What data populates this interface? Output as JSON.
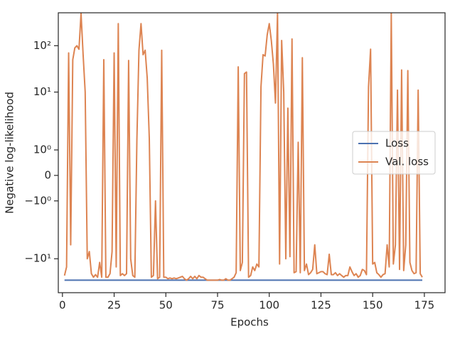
{
  "chart_data": {
    "type": "line",
    "xlabel": "Epochs",
    "ylabel": "Negative log-likelihood",
    "x": [
      1,
      2,
      3,
      4,
      5,
      6,
      7,
      8,
      9,
      10,
      11,
      12,
      13,
      14,
      15,
      16,
      17,
      18,
      19,
      20,
      21,
      22,
      23,
      24,
      25,
      26,
      27,
      28,
      29,
      30,
      31,
      32,
      33,
      34,
      35,
      36,
      37,
      38,
      39,
      40,
      41,
      42,
      43,
      44,
      45,
      46,
      47,
      48,
      49,
      50,
      51,
      52,
      53,
      54,
      55,
      56,
      57,
      58,
      59,
      60,
      61,
      62,
      63,
      64,
      65,
      66,
      67,
      68,
      69,
      70,
      71,
      72,
      73,
      74,
      75,
      76,
      77,
      78,
      79,
      80,
      81,
      82,
      83,
      84,
      85,
      86,
      87,
      88,
      89,
      90,
      91,
      92,
      93,
      94,
      95,
      96,
      97,
      98,
      99,
      100,
      101,
      102,
      103,
      104,
      105,
      106,
      107,
      108,
      109,
      110,
      111,
      112,
      113,
      114,
      115,
      116,
      117,
      118,
      119,
      120,
      121,
      122,
      123,
      124,
      125,
      126,
      127,
      128,
      129,
      130,
      131,
      132,
      133,
      134,
      135,
      136,
      137,
      138,
      139,
      140,
      141,
      142,
      143,
      144,
      145,
      146,
      147,
      148,
      149,
      150,
      151,
      152,
      153,
      154,
      155,
      156,
      157,
      158,
      159,
      160,
      161,
      162,
      163,
      164,
      165,
      166,
      167,
      168,
      169,
      170,
      171,
      172,
      173,
      174
    ],
    "series": [
      {
        "name": "Loss",
        "color": "#4c72b0",
        "values": [
          -29,
          -29,
          -29,
          -29,
          -29,
          -29,
          -29,
          -29,
          -29,
          -29,
          -29,
          -29,
          -29,
          -29,
          -29,
          -29,
          -29,
          -29,
          -29,
          -29,
          -29,
          -29,
          -29,
          -29,
          -29,
          -29,
          -29,
          -29,
          -29,
          -29,
          -29,
          -29,
          -29,
          -29,
          -29,
          -29,
          -29,
          -29,
          -29,
          -29,
          -29,
          -29,
          -29,
          -29,
          -29,
          -29,
          -29,
          -29,
          -29,
          -29,
          -29,
          -29,
          -29,
          -29,
          -29,
          -29,
          -29,
          -29,
          -29,
          -29,
          -29,
          -29,
          -29,
          -29,
          -29,
          -29,
          -29,
          -29,
          -29,
          -29,
          -29,
          -29,
          -29,
          -29,
          -29,
          -29,
          -29,
          -29,
          -29,
          -29,
          -29,
          -29,
          -29,
          -29,
          -29,
          -29,
          -29,
          -29,
          -29,
          -29,
          -29,
          -29,
          -29,
          -29,
          -29,
          -29,
          -29,
          -29,
          -29,
          -29,
          -29,
          -29,
          -29,
          -29,
          -29,
          -29,
          -29,
          -29,
          -29,
          -29,
          -29,
          -29,
          -29,
          -29,
          -29,
          -29,
          -29,
          -29,
          -29,
          -29,
          -29,
          -29,
          -29,
          -29,
          -29,
          -29,
          -29,
          -29,
          -29,
          -29,
          -29,
          -29,
          -29,
          -29,
          -29,
          -29,
          -29,
          -29,
          -29,
          -29,
          -29,
          -29,
          -29,
          -29,
          -29,
          -29,
          -29,
          -29,
          -29,
          -29,
          -29,
          -29,
          -29,
          -29,
          -29,
          -29,
          -29,
          -29,
          -29,
          -29,
          -29,
          -29,
          -29,
          -29,
          -29,
          -29,
          -29,
          -29,
          -29,
          -29,
          -29,
          -29,
          -29,
          -29
        ]
      },
      {
        "name": "Val. loss",
        "color": "#dd8452",
        "values": [
          -23,
          -15,
          70,
          -5,
          50,
          90,
          100,
          84,
          500,
          64,
          10,
          -10,
          -7,
          -21,
          -25,
          -22,
          -25,
          -12,
          -25,
          50,
          -25,
          -25,
          -21,
          -7,
          70,
          -15,
          300,
          -23,
          -21,
          -23,
          -21,
          48,
          -10,
          -23,
          -25,
          1.4,
          80,
          300,
          64,
          80,
          20,
          1.45,
          -25,
          -23,
          -1,
          -27,
          -25,
          80,
          -25,
          -25,
          -27,
          -26,
          -27,
          -26,
          -27,
          -26,
          -25,
          -24,
          -27,
          -29,
          -27,
          -24,
          -27,
          -24,
          -27,
          -23,
          -25,
          -25,
          -27,
          -29,
          -29,
          -29,
          -29,
          -29,
          -29,
          -28,
          -29,
          -29,
          -27,
          -29,
          -29,
          -27,
          -25,
          -20,
          35,
          -18,
          -12,
          25,
          27,
          -25,
          -23,
          -15,
          -18,
          -13,
          -15,
          13,
          64,
          60,
          170,
          300,
          130,
          40,
          5.8,
          500,
          -13,
          130,
          10,
          -10,
          4.5,
          -9,
          140,
          -20,
          -19,
          1.3,
          -20,
          55,
          -18,
          -13,
          -22,
          -20,
          -17,
          -5,
          -21,
          -20,
          -19,
          -19,
          -21,
          -22,
          -8,
          -22,
          -22,
          -20,
          -23,
          -21,
          -23,
          -25,
          -23,
          -23,
          -15,
          -19,
          -23,
          -21,
          -25,
          -23,
          -17,
          -18,
          -22,
          13,
          84,
          -13,
          -12,
          -20,
          -22,
          -25,
          -22,
          -21,
          -5,
          -15,
          500,
          -13,
          -5,
          11,
          -17,
          30,
          -18,
          -5,
          29,
          -12,
          -18,
          -21,
          -20,
          11,
          -21,
          -25
        ]
      }
    ],
    "xlim": [
      -2,
      185
    ],
    "xticks": [
      0,
      25,
      50,
      75,
      100,
      125,
      150,
      175
    ],
    "yscale": "symlog",
    "linthresh": 2,
    "linscale": 1.1,
    "ylim": [
      -54,
      514
    ],
    "yticks": [
      {
        "value": 100,
        "label": "10²"
      },
      {
        "value": 10,
        "label": "10¹"
      },
      {
        "value": 1,
        "label": "10⁰"
      },
      0,
      {
        "value": -1,
        "label": "−10⁰"
      },
      {
        "value": -10,
        "label": "−10¹"
      }
    ],
    "legend": "center right"
  }
}
